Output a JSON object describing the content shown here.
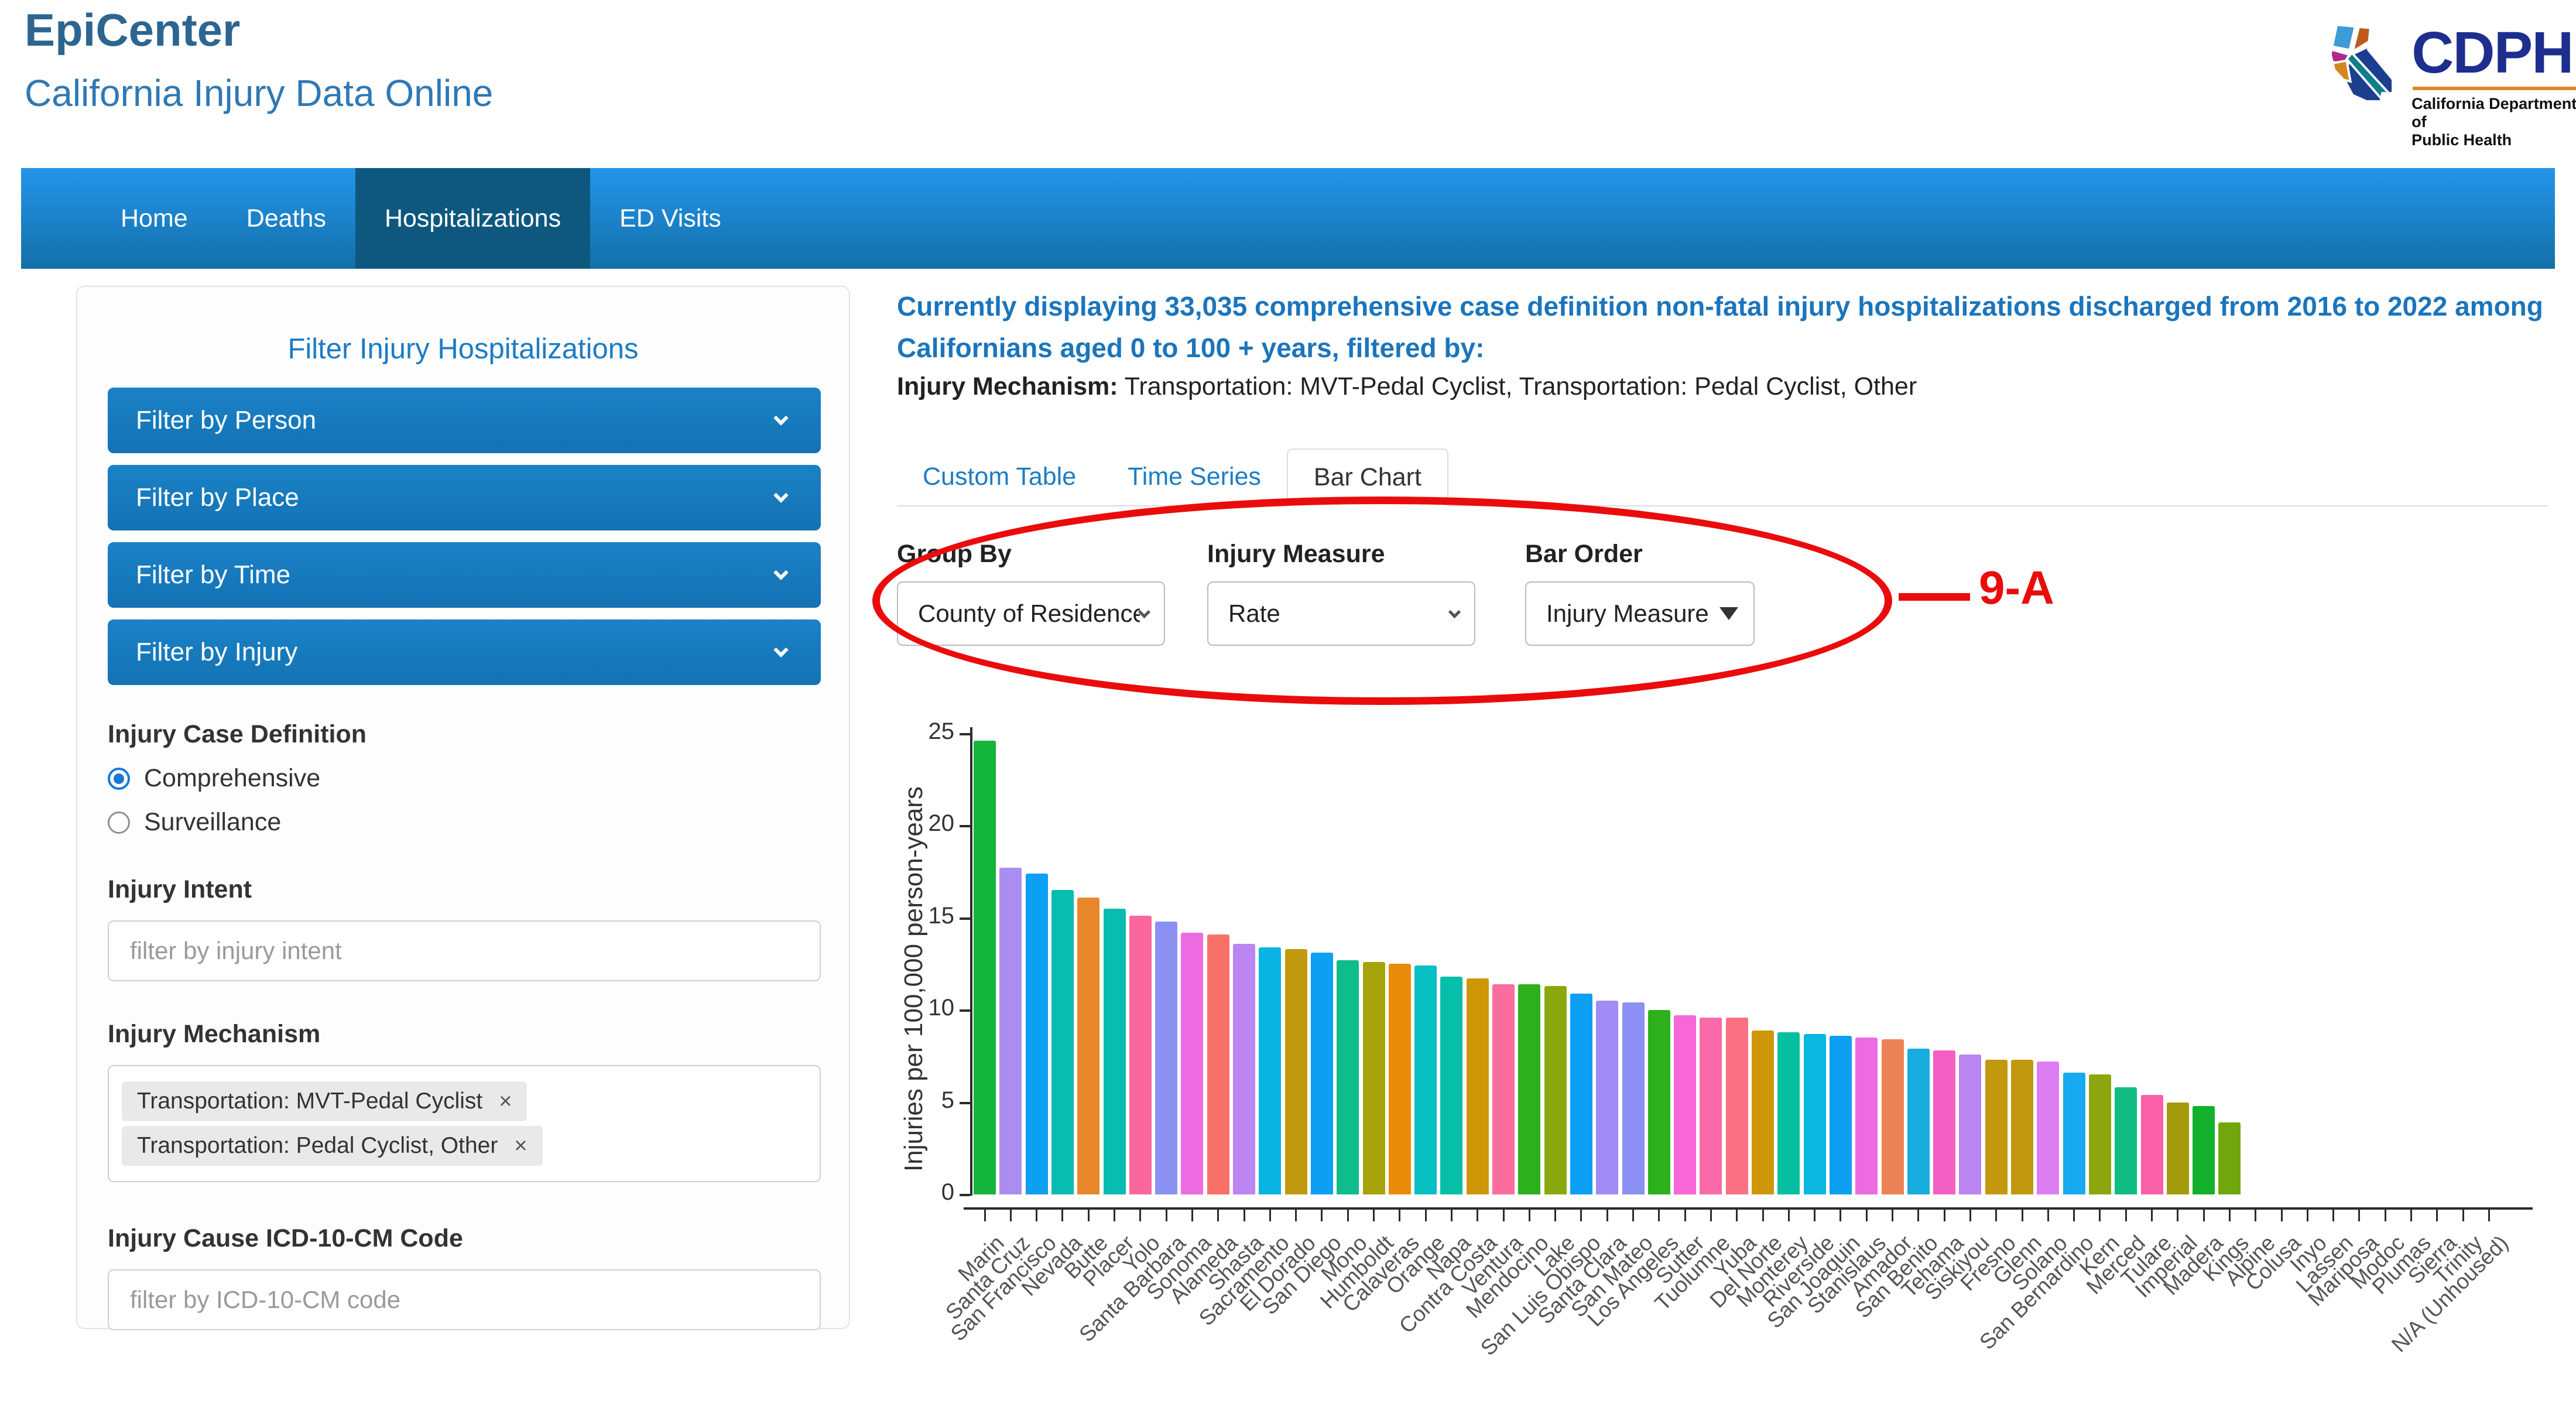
{
  "header": {
    "title": "EpiCenter",
    "subtitle": "California Injury Data Online",
    "logo": {
      "text": "CDPH",
      "caption_line1": "California Department of",
      "caption_line2": "Public Health"
    }
  },
  "nav": {
    "items": [
      {
        "label": "Home",
        "active": false
      },
      {
        "label": "Deaths",
        "active": false
      },
      {
        "label": "Hospitalizations",
        "active": true
      },
      {
        "label": "ED Visits",
        "active": false
      }
    ]
  },
  "sidebar": {
    "title": "Filter Injury Hospitalizations",
    "accordions": [
      {
        "label": "Filter by Person"
      },
      {
        "label": "Filter by Place"
      },
      {
        "label": "Filter by Time"
      },
      {
        "label": "Filter by Injury"
      }
    ],
    "case_definition": {
      "heading": "Injury Case Definition",
      "options": [
        {
          "label": "Comprehensive",
          "selected": true
        },
        {
          "label": "Surveillance",
          "selected": false
        }
      ]
    },
    "injury_intent": {
      "heading": "Injury Intent",
      "placeholder": "filter by injury intent"
    },
    "injury_mechanism": {
      "heading": "Injury Mechanism",
      "tags": [
        "Transportation: MVT-Pedal Cyclist",
        "Transportation: Pedal Cyclist, Other"
      ]
    },
    "icd_code": {
      "heading": "Injury Cause ICD-10-CM Code",
      "placeholder": "filter by ICD-10-CM code"
    }
  },
  "main": {
    "summary": "Currently displaying 33,035 comprehensive case definition non-fatal injury hospitalizations discharged from 2016 to 2022 among Californians aged 0 to 100 + years, filtered by:",
    "filter_label": "Injury Mechanism:",
    "filter_value": "Transportation: MVT-Pedal Cyclist, Transportation: Pedal Cyclist, Other",
    "tabs": [
      {
        "label": "Custom Table",
        "active": false
      },
      {
        "label": "Time Series",
        "active": false
      },
      {
        "label": "Bar Chart",
        "active": true
      }
    ],
    "controls": [
      {
        "label": "Group By",
        "value": "County of Residence",
        "icon": "chevron"
      },
      {
        "label": "Injury Measure",
        "value": "Rate",
        "icon": "chevron"
      },
      {
        "label": "Bar Order",
        "value": "Injury Measure",
        "icon": "caret"
      }
    ],
    "annotation": {
      "label": "9-A",
      "color": "#ea0c0c"
    }
  },
  "chart_data": {
    "type": "bar",
    "title": "",
    "xlabel": "",
    "ylabel": "Injuries per 100,000 person-years",
    "ylim": [
      0,
      25
    ],
    "yticks": [
      0,
      5,
      10,
      15,
      20,
      25
    ],
    "grid": false,
    "legend": false,
    "categories": [
      "Marin",
      "Santa Cruz",
      "San Francisco",
      "Nevada",
      "Butte",
      "Placer",
      "Yolo",
      "Santa Barbara",
      "Sonoma",
      "Alameda",
      "Shasta",
      "Sacramento",
      "El Dorado",
      "San Diego",
      "Mono",
      "Humboldt",
      "Calaveras",
      "Orange",
      "Napa",
      "Contra Costa",
      "Ventura",
      "Mendocino",
      "Lake",
      "San Luis Obispo",
      "Santa Clara",
      "San Mateo",
      "Los Angeles",
      "Sutter",
      "Tuolumne",
      "Yuba",
      "Del Norte",
      "Monterey",
      "Riverside",
      "San Joaquin",
      "Stanislaus",
      "Amador",
      "San Benito",
      "Tehama",
      "Siskiyou",
      "Fresno",
      "Glenn",
      "Solano",
      "San Bernardino",
      "Kern",
      "Merced",
      "Tulare",
      "Imperial",
      "Madera",
      "Kings",
      "Alpine",
      "Colusa",
      "Inyo",
      "Lassen",
      "Mariposa",
      "Modoc",
      "Plumas",
      "Sierra",
      "Trinity",
      "N/A (Unhoused)"
    ],
    "values": [
      24.6,
      17.7,
      17.4,
      16.5,
      16.1,
      15.5,
      15.1,
      14.8,
      14.2,
      14.1,
      13.6,
      13.4,
      13.3,
      13.1,
      12.7,
      12.6,
      12.5,
      12.4,
      11.8,
      11.7,
      11.4,
      11.4,
      11.3,
      10.9,
      10.5,
      10.4,
      10.0,
      9.7,
      9.6,
      9.6,
      8.9,
      8.8,
      8.7,
      8.6,
      8.5,
      8.4,
      7.9,
      7.8,
      7.6,
      7.3,
      7.3,
      7.2,
      6.6,
      6.5,
      5.8,
      5.4,
      5.0,
      4.8,
      3.9,
      null,
      null,
      null,
      null,
      null,
      null,
      null,
      null,
      null,
      null
    ],
    "bar_colors": [
      "#13b53a",
      "#ab8df2",
      "#0d9ff2",
      "#08bcb0",
      "#e8882a",
      "#08bcb0",
      "#fa679c",
      "#8b91f2",
      "#ec6ae2",
      "#f8726a",
      "#bb85f2",
      "#0ab4e2",
      "#c2980e",
      "#0d9ff2",
      "#0fbd8c",
      "#a6a40a",
      "#e88c0a",
      "#08bfc4",
      "#07bfa9",
      "#cd9708",
      "#fa6d9c",
      "#2cb01c",
      "#8aa90e",
      "#0d9ff2",
      "#a18cf5",
      "#8b91f2",
      "#2cb01c",
      "#f767d8",
      "#fa6aa8",
      "#fa7085",
      "#cf9708",
      "#06bfa0",
      "#0ab8e0",
      "#0d9ff2",
      "#ec6ae2",
      "#ec8256",
      "#18acdf",
      "#f45fc3",
      "#bb85f2",
      "#c2980e",
      "#c2980e",
      "#dd7df2",
      "#18aaf0",
      "#8da50f",
      "#0fbd82",
      "#fa60a8",
      "#a39b0b",
      "#13b02c",
      "#72a60d"
    ]
  }
}
